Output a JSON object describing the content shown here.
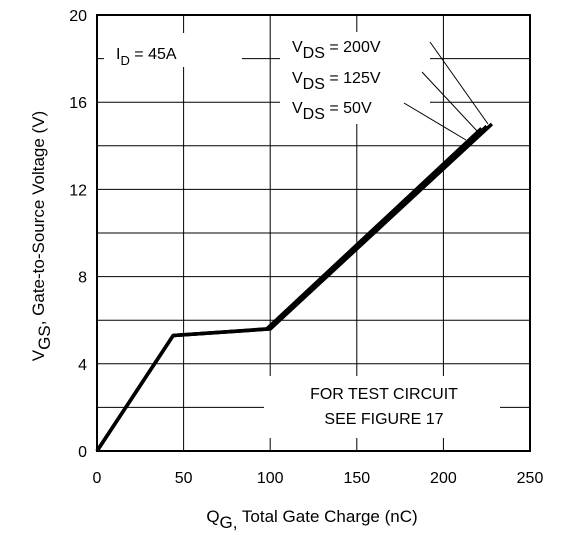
{
  "chart_data": {
    "type": "line",
    "title": "",
    "xlabel": {
      "main": "Q",
      "sub": "G,",
      "rest": " Total Gate Charge (nC)"
    },
    "ylabel": {
      "main": "V",
      "sub": "GS",
      "rest": ", Gate-to-Source Voltage (V)"
    },
    "xlim": [
      0,
      250
    ],
    "ylim": [
      0,
      20
    ],
    "xticks": [
      0,
      50,
      100,
      150,
      200,
      250
    ],
    "yticks": [
      0,
      4,
      8,
      12,
      16,
      20
    ],
    "grid": true,
    "series": [
      {
        "x": [
          0,
          44,
          100,
          228
        ],
        "y": [
          0,
          5.3,
          5.6,
          15.0
        ]
      },
      {
        "x": [
          0,
          44,
          100,
          225
        ],
        "y": [
          0,
          5.3,
          5.6,
          14.9
        ]
      },
      {
        "x": [
          0,
          44,
          98,
          222
        ],
        "y": [
          0,
          5.3,
          5.6,
          14.8
        ]
      }
    ],
    "annotations": {
      "id_label": {
        "main": "I",
        "sub": "D",
        "rest": " = 45A"
      },
      "vds_labels": [
        {
          "main": "V",
          "sub": "DS",
          "rest": " = 200V"
        },
        {
          "main": "V",
          "sub": "DS",
          "rest": " = 125V"
        },
        {
          "main": "V",
          "sub": "DS",
          "rest": " =  50V"
        }
      ],
      "test_circuit": [
        "FOR TEST CIRCUIT",
        "SEE FIGURE 17"
      ]
    }
  }
}
